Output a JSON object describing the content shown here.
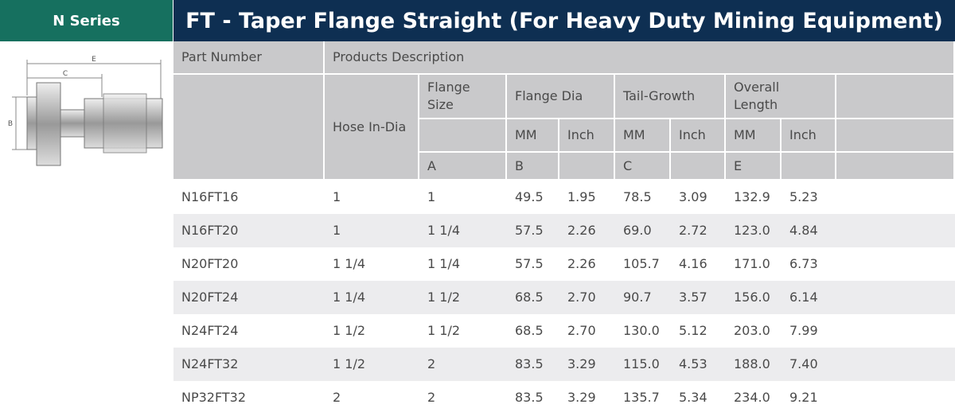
{
  "header": {
    "series": "N Series",
    "title": "FT - Taper Flange Straight (For Heavy Duty Mining Equipment)"
  },
  "drawing": {
    "labels": [
      "E",
      "C",
      "B"
    ]
  },
  "table": {
    "part_number": "Part Number",
    "description": "Products Description",
    "groups": [
      "Hose In-Dia",
      "Flange Size",
      "Flange Dia",
      "Tail-Growth",
      "Overall Length"
    ],
    "units": [
      "MM",
      "Inch",
      "MM",
      "Inch",
      "MM",
      "Inch"
    ],
    "dimension_letters": [
      "A",
      "B",
      "C",
      "E"
    ],
    "rows": [
      [
        "N16FT16",
        "1",
        "1",
        "49.5",
        "1.95",
        "78.5",
        "3.09",
        "132.9",
        "5.23"
      ],
      [
        "N16FT20",
        "1",
        "1 1/4",
        "57.5",
        "2.26",
        "69.0",
        "2.72",
        "123.0",
        "4.84"
      ],
      [
        "N20FT20",
        "1 1/4",
        "1 1/4",
        "57.5",
        "2.26",
        "105.7",
        "4.16",
        "171.0",
        "6.73"
      ],
      [
        "N20FT24",
        "1 1/4",
        "1 1/2",
        "68.5",
        "2.70",
        "90.7",
        "3.57",
        "156.0",
        "6.14"
      ],
      [
        "N24FT24",
        "1 1/2",
        "1 1/2",
        "68.5",
        "2.70",
        "130.0",
        "5.12",
        "203.0",
        "7.99"
      ],
      [
        "N24FT32",
        "1 1/2",
        "2",
        "83.5",
        "3.29",
        "115.0",
        "4.53",
        "188.0",
        "7.40"
      ],
      [
        "NP32FT32",
        "2",
        "2",
        "83.5",
        "3.29",
        "135.7",
        "5.34",
        "234.0",
        "9.21"
      ]
    ]
  }
}
